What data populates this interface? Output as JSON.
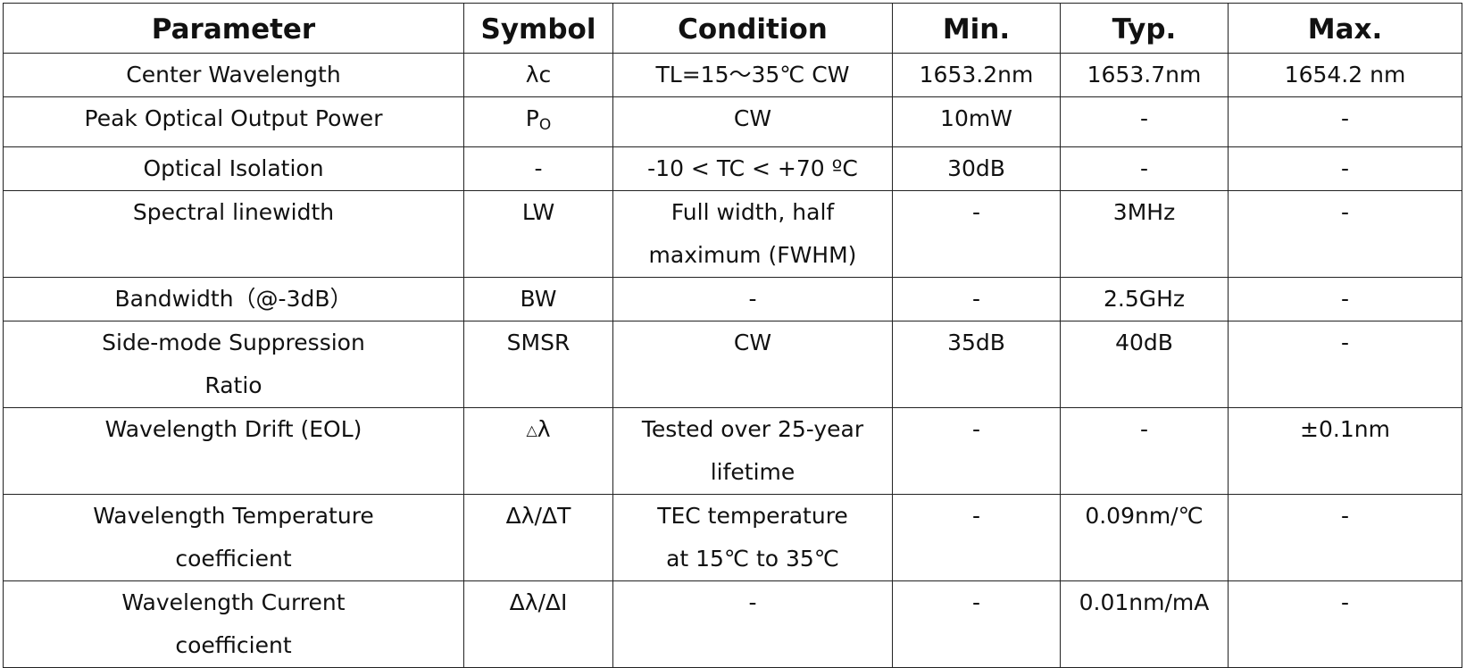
{
  "table": {
    "headers": [
      "Parameter",
      "Symbol",
      "Condition",
      "Min.",
      "Typ.",
      "Max."
    ],
    "rows": [
      {
        "parameter": [
          "Center Wavelength"
        ],
        "symbol": "λc",
        "condition": [
          "TL=15～35℃ CW"
        ],
        "min": "1653.2nm",
        "typ": "1653.7nm",
        "max": "1654.2 nm"
      },
      {
        "parameter": [
          "Peak Optical Output Power"
        ],
        "symbol_main": "P",
        "symbol_sub": "O",
        "condition": [
          "CW"
        ],
        "min": "10mW",
        "typ": "-",
        "max": "-"
      },
      {
        "parameter": [
          "Optical Isolation"
        ],
        "symbol": "-",
        "condition": [
          "-10 < TC < +70 ºC"
        ],
        "min": "30dB",
        "typ": "-",
        "max": "-"
      },
      {
        "parameter": [
          "Spectral linewidth"
        ],
        "symbol": "LW",
        "condition": [
          "Full width, half",
          "maximum (FWHM)"
        ],
        "min": "-",
        "typ": "3MHz",
        "max": "-"
      },
      {
        "parameter": [
          "Bandwidth（@-3dB）"
        ],
        "symbol": "BW",
        "condition": [
          "-"
        ],
        "min": "-",
        "typ": "2.5GHz",
        "max": "-"
      },
      {
        "parameter": [
          "Side-mode Suppression",
          "Ratio"
        ],
        "symbol": "SMSR",
        "condition": [
          "CW"
        ],
        "min": "35dB",
        "typ": "40dB",
        "max": "-"
      },
      {
        "parameter": [
          "Wavelength Drift (EOL)"
        ],
        "symbol_small": "△",
        "symbol_main": "λ",
        "condition": [
          "Tested over 25-year",
          "lifetime"
        ],
        "min": "-",
        "typ": "-",
        "max": "±0.1nm"
      },
      {
        "parameter": [
          "Wavelength Temperature",
          "coefficient"
        ],
        "symbol": "Δλ/ΔT",
        "condition": [
          "TEC temperature",
          "at 15℃ to 35℃"
        ],
        "min": "-",
        "typ": "0.09nm/℃",
        "max": "-"
      },
      {
        "parameter": [
          "Wavelength Current",
          "coefficient"
        ],
        "symbol": "Δλ/ΔI",
        "condition": [
          "-"
        ],
        "min": "-",
        "typ": "0.01nm/mA",
        "max": "-"
      }
    ]
  }
}
